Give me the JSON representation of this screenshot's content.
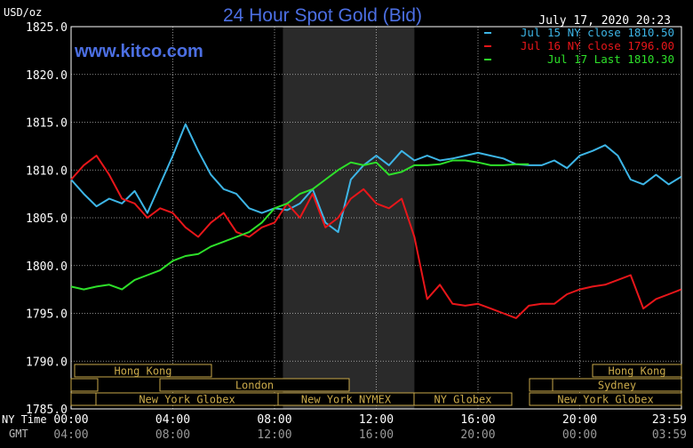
{
  "header": {
    "ylabel": "USD/oz",
    "title": "24 Hour Spot Gold (Bid)",
    "timestamp": "July 17, 2020 20:23",
    "watermark": "www.kitco.com"
  },
  "colors": {
    "background": "#000000",
    "grid": "#ffffff",
    "title": "#4c6fe3",
    "watermark": "#4c6fe3",
    "session_shade": "#2a2a2a",
    "market_box": "#c9a94a",
    "jul15": "#3db5e6",
    "jul16": "#e8161a",
    "jul17": "#2ee02a"
  },
  "axis_row_labels": {
    "ny": "NY Time",
    "gmt": "GMT"
  },
  "market_boxes": [
    {
      "label": "Hong Kong"
    },
    {
      "label": "Hong Kong"
    },
    {
      "label": "London"
    },
    {
      "label": "Sydney"
    },
    {
      "label": "New York Globex"
    },
    {
      "label": "New York NYMEX"
    },
    {
      "label": "NY Globex"
    },
    {
      "label": "New York Globex"
    }
  ],
  "chart_data": {
    "type": "line",
    "title": "24 Hour Spot Gold (Bid)",
    "ylabel": "USD/oz",
    "ylim": [
      1785,
      1825
    ],
    "yticks": [
      "1825.0",
      "1820.0",
      "1815.0",
      "1810.0",
      "1805.0",
      "1800.0",
      "1795.0",
      "1790.0",
      "1785.0"
    ],
    "xlim": [
      0,
      24
    ],
    "xticks_ny": [
      "00:00",
      "04:00",
      "08:00",
      "12:00",
      "16:00",
      "20:00",
      "23:59"
    ],
    "xticks_gmt": [
      "04:00",
      "08:00",
      "12:00",
      "16:00",
      "20:00",
      "00:00",
      "03:59"
    ],
    "grid": true,
    "legend_position": "top-right",
    "series": [
      {
        "name": "Jul 15 NY close 1810.50",
        "x": [
          0,
          0.5,
          1,
          1.5,
          2,
          2.5,
          3,
          3.5,
          4,
          4.5,
          5,
          5.5,
          6,
          6.5,
          7,
          7.5,
          8,
          8.5,
          9,
          9.5,
          10,
          10.5,
          11,
          11.5,
          12,
          12.5,
          13,
          13.5,
          14,
          14.5,
          15,
          15.5,
          16,
          16.5,
          17,
          17.5,
          18,
          18.5,
          19,
          19.5,
          20,
          20.5,
          21,
          21.5,
          22,
          22.5,
          23,
          23.5,
          23.99
        ],
        "y": [
          1809.0,
          1807.5,
          1806.2,
          1807.0,
          1806.5,
          1807.8,
          1805.5,
          1808.5,
          1811.5,
          1814.8,
          1812.0,
          1809.5,
          1808.0,
          1807.5,
          1806.0,
          1805.5,
          1806.0,
          1805.8,
          1806.5,
          1808.0,
          1804.5,
          1803.5,
          1809.0,
          1810.5,
          1811.5,
          1810.5,
          1812.0,
          1811.0,
          1811.5,
          1811.0,
          1811.2,
          1811.5,
          1811.8,
          1811.5,
          1811.2,
          1810.6,
          1810.5,
          1810.5,
          1811.0,
          1810.2,
          1811.5,
          1812.0,
          1812.6,
          1811.5,
          1809.0,
          1808.5,
          1809.5,
          1808.5,
          1809.3
        ]
      },
      {
        "name": "Jul 16 NY close 1796.00",
        "x": [
          0,
          0.5,
          1,
          1.5,
          2,
          2.5,
          3,
          3.5,
          4,
          4.5,
          5,
          5.5,
          6,
          6.5,
          7,
          7.5,
          8,
          8.5,
          9,
          9.5,
          10,
          10.5,
          11,
          11.5,
          12,
          12.5,
          13,
          13.5,
          14,
          14.5,
          15,
          15.5,
          16,
          16.5,
          17,
          17.5,
          18,
          18.5,
          19,
          19.5,
          20,
          20.5,
          21,
          21.5,
          22,
          22.5,
          23,
          23.5,
          23.99
        ],
        "y": [
          1809.0,
          1810.5,
          1811.5,
          1809.5,
          1807.0,
          1806.5,
          1805.0,
          1806.0,
          1805.5,
          1804.0,
          1803.0,
          1804.5,
          1805.5,
          1803.5,
          1803.0,
          1804.0,
          1804.5,
          1806.5,
          1805.0,
          1807.5,
          1804.0,
          1805.0,
          1807.0,
          1808.0,
          1806.5,
          1806.0,
          1807.0,
          1803.0,
          1796.5,
          1798.0,
          1796.0,
          1795.8,
          1796.0,
          1795.5,
          1795.0,
          1794.5,
          1795.8,
          1796.0,
          1796.0,
          1797.0,
          1797.5,
          1797.8,
          1798.0,
          1798.5,
          1799.0,
          1795.5,
          1796.5,
          1797.0,
          1797.5
        ]
      },
      {
        "name": "Jul 17 Last 1810.30",
        "x": [
          0,
          0.5,
          1,
          1.5,
          2,
          2.5,
          3,
          3.5,
          4,
          4.5,
          5,
          5.5,
          6,
          6.5,
          7,
          7.5,
          8,
          8.5,
          9,
          9.5,
          10,
          10.5,
          11,
          11.5,
          12,
          12.5,
          13,
          13.5,
          14,
          14.5,
          15,
          15.5,
          16,
          16.5,
          17,
          17.5,
          18
        ],
        "y": [
          1797.8,
          1797.5,
          1797.8,
          1798.0,
          1797.5,
          1798.5,
          1799.0,
          1799.5,
          1800.5,
          1801.0,
          1801.2,
          1802.0,
          1802.5,
          1803.0,
          1803.5,
          1804.5,
          1806.0,
          1806.5,
          1807.5,
          1808.0,
          1809.0,
          1810.0,
          1810.8,
          1810.5,
          1810.8,
          1809.5,
          1809.8,
          1810.5,
          1810.5,
          1810.6,
          1811.0,
          1811.0,
          1810.8,
          1810.5,
          1810.5,
          1810.6,
          1810.6
        ]
      }
    ]
  }
}
